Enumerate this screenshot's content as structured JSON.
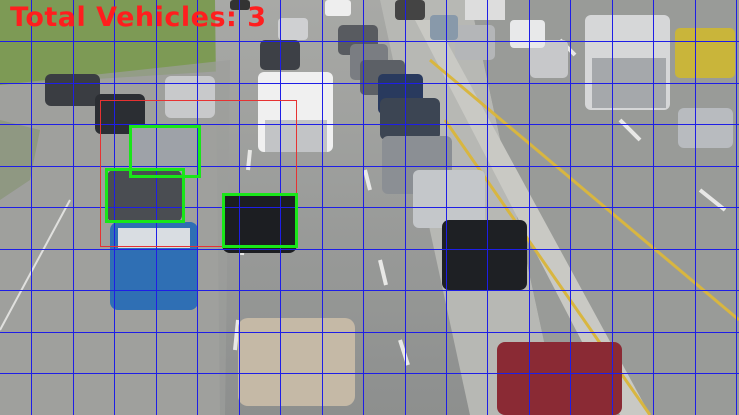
{
  "overlay": {
    "counter_text": "Total Vehicles: 3",
    "counter_color": "#ff1e1e",
    "detection_color": "#19e619",
    "roi_color": "#e63232",
    "grid_color": "#1e1ee6",
    "detected_vehicle_count": 3
  }
}
